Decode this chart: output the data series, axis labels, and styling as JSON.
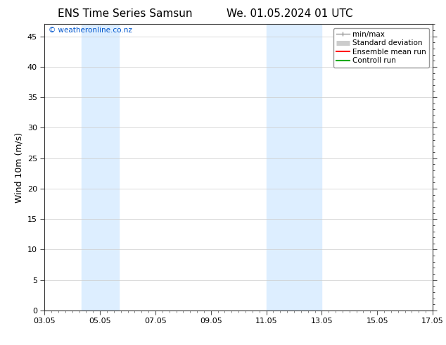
{
  "title_left": "ENS Time Series Samsun",
  "title_right": "We. 01.05.2024 01 UTC",
  "ylabel": "Wind 10m (m/s)",
  "watermark": "© weatheronline.co.nz",
  "watermark_color": "#0055cc",
  "background_color": "#ffffff",
  "plot_bg_color": "#ffffff",
  "xlim": [
    0,
    14
  ],
  "ylim": [
    0,
    47
  ],
  "xtick_positions": [
    0,
    2,
    4,
    6,
    8,
    10,
    12,
    14
  ],
  "xtick_labels": [
    "03.05",
    "05.05",
    "07.05",
    "09.05",
    "11.05",
    "13.05",
    "15.05",
    "17.05"
  ],
  "ytick_positions": [
    0,
    5,
    10,
    15,
    20,
    25,
    30,
    35,
    40,
    45
  ],
  "ytick_labels": [
    "0",
    "5",
    "10",
    "15",
    "20",
    "25",
    "30",
    "35",
    "40",
    "45"
  ],
  "shaded_bands": [
    {
      "x_start": 1.33,
      "x_end": 2.67,
      "color": "#ddeeff",
      "alpha": 1.0
    },
    {
      "x_start": 8.0,
      "x_end": 10.0,
      "color": "#ddeeff",
      "alpha": 1.0
    }
  ],
  "legend_entries": [
    {
      "label": "min/max",
      "color": "#999999",
      "linewidth": 1.0,
      "style": "minmax"
    },
    {
      "label": "Standard deviation",
      "color": "#cccccc",
      "linewidth": 5,
      "style": "band"
    },
    {
      "label": "Ensemble mean run",
      "color": "#ff0000",
      "linewidth": 1.5,
      "style": "line"
    },
    {
      "label": "Controll run",
      "color": "#00aa00",
      "linewidth": 1.5,
      "style": "line"
    }
  ],
  "grid_color": "#cccccc",
  "title_fontsize": 11,
  "tick_fontsize": 8,
  "ylabel_fontsize": 9
}
